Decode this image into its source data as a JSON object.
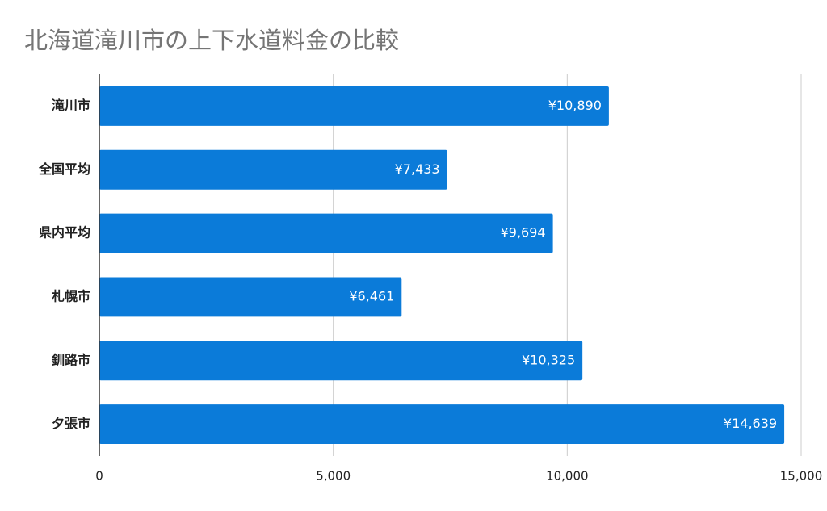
{
  "chart_data": {
    "type": "bar",
    "orientation": "horizontal",
    "title": "北海道滝川市の上下水道料金の比較",
    "categories": [
      "滝川市",
      "全国平均",
      "県内平均",
      "札幌市",
      "釧路市",
      "夕張市"
    ],
    "values": [
      10890,
      7433,
      9694,
      6461,
      10325,
      14639
    ],
    "value_labels": [
      "¥10,890",
      "¥7,433",
      "¥9,694",
      "¥6,461",
      "¥10,325",
      "¥14,639"
    ],
    "color": "#0b7bd9",
    "xlim": [
      0,
      15000
    ],
    "xticks": [
      0,
      {
        "value": 5000,
        "label": "5,000"
      },
      {
        "value": 10000,
        "label": "10,000"
      },
      {
        "value": 15000,
        "label": "15,000"
      }
    ],
    "grid": true
  }
}
